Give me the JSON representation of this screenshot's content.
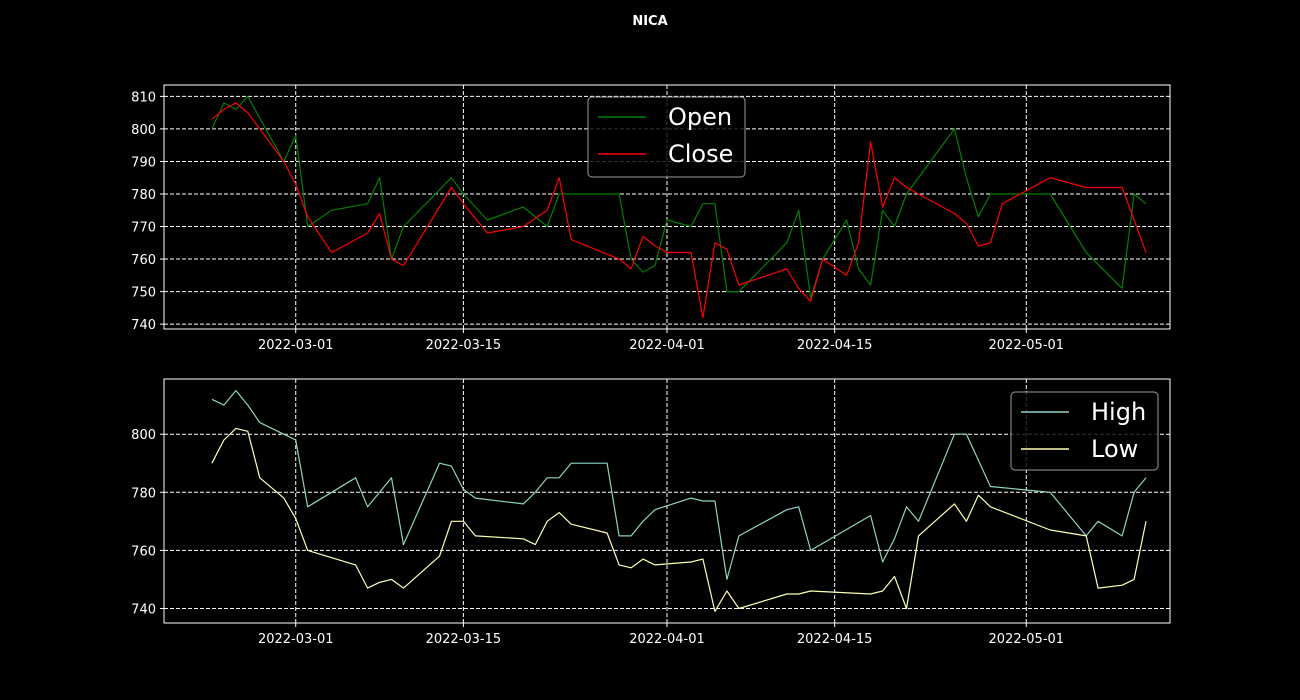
{
  "figure": {
    "title": "NICA"
  },
  "colors": {
    "background": "#000000",
    "axes": "#ffffff",
    "grid": "#ffffff",
    "open": "#008000",
    "close": "#ff0000",
    "high": "#8dd3c7",
    "low": "#ffffb3"
  },
  "chart_data": [
    {
      "type": "line",
      "title": "",
      "xlabel": "",
      "ylabel": "",
      "grid": true,
      "legend": "top-center",
      "xlim": [
        "2022-02-18",
        "2022-05-13"
      ],
      "ylim": [
        738.5,
        813.5
      ],
      "x_ticks": [
        "2022-03-01",
        "2022-03-15",
        "2022-04-01",
        "2022-04-15",
        "2022-05-01"
      ],
      "y_ticks": [
        740,
        750,
        760,
        770,
        780,
        790,
        800,
        810
      ],
      "x": [
        "2022-02-22",
        "2022-02-23",
        "2022-02-24",
        "2022-02-25",
        "2022-02-28",
        "2022-03-01",
        "2022-03-02",
        "2022-03-04",
        "2022-03-07",
        "2022-03-08",
        "2022-03-09",
        "2022-03-10",
        "2022-03-14",
        "2022-03-15",
        "2022-03-17",
        "2022-03-20",
        "2022-03-22",
        "2022-03-23",
        "2022-03-24",
        "2022-03-28",
        "2022-03-29",
        "2022-03-30",
        "2022-03-31",
        "2022-04-01",
        "2022-04-03",
        "2022-04-04",
        "2022-04-05",
        "2022-04-06",
        "2022-04-07",
        "2022-04-11",
        "2022-04-12",
        "2022-04-13",
        "2022-04-14",
        "2022-04-16",
        "2022-04-17",
        "2022-04-18",
        "2022-04-19",
        "2022-04-20",
        "2022-04-21",
        "2022-04-25",
        "2022-04-26",
        "2022-04-27",
        "2022-04-28",
        "2022-04-29",
        "2022-05-03",
        "2022-05-06",
        "2022-05-09",
        "2022-05-10",
        "2022-05-11"
      ],
      "series": [
        {
          "name": "Open",
          "color": "#008000",
          "values": [
            800,
            808,
            806,
            810,
            790,
            798,
            770,
            775,
            777,
            785,
            760,
            770,
            785,
            780,
            772,
            776,
            770,
            780,
            780,
            780,
            760,
            756,
            758,
            772,
            770,
            777,
            777,
            750,
            750,
            765,
            775,
            748,
            760,
            772,
            757,
            752,
            775,
            770,
            780,
            800,
            785,
            773,
            780,
            780,
            780,
            762,
            751,
            780,
            777
          ]
        },
        {
          "name": "Close",
          "color": "#ff0000",
          "values": [
            803,
            806,
            808,
            805,
            790,
            783,
            773,
            762,
            768,
            774,
            760,
            758,
            782,
            777,
            768,
            770,
            775,
            785,
            766,
            760,
            757,
            767,
            764,
            762,
            762,
            742,
            765,
            763,
            752,
            757,
            751,
            747,
            760,
            755,
            765,
            796,
            776,
            785,
            782,
            774,
            771,
            764,
            765,
            777,
            785,
            782,
            782,
            772,
            762
          ]
        }
      ]
    },
    {
      "type": "line",
      "title": "",
      "xlabel": "",
      "ylabel": "",
      "grid": true,
      "legend": "top-right",
      "xlim": [
        "2022-02-18",
        "2022-05-13"
      ],
      "ylim": [
        735,
        819
      ],
      "x_ticks": [
        "2022-03-01",
        "2022-03-15",
        "2022-04-01",
        "2022-04-15",
        "2022-05-01"
      ],
      "y_ticks": [
        740,
        760,
        780,
        800
      ],
      "x": [
        "2022-02-22",
        "2022-02-23",
        "2022-02-24",
        "2022-02-25",
        "2022-02-26",
        "2022-02-28",
        "2022-03-01",
        "2022-03-02",
        "2022-03-06",
        "2022-03-07",
        "2022-03-08",
        "2022-03-09",
        "2022-03-10",
        "2022-03-13",
        "2022-03-14",
        "2022-03-15",
        "2022-03-16",
        "2022-03-20",
        "2022-03-21",
        "2022-03-22",
        "2022-03-23",
        "2022-03-24",
        "2022-03-27",
        "2022-03-28",
        "2022-03-29",
        "2022-03-30",
        "2022-03-31",
        "2022-04-03",
        "2022-04-04",
        "2022-04-05",
        "2022-04-06",
        "2022-04-07",
        "2022-04-11",
        "2022-04-12",
        "2022-04-13",
        "2022-04-18",
        "2022-04-19",
        "2022-04-20",
        "2022-04-21",
        "2022-04-22",
        "2022-04-25",
        "2022-04-26",
        "2022-04-27",
        "2022-04-28",
        "2022-05-03",
        "2022-05-06",
        "2022-05-07",
        "2022-05-09",
        "2022-05-10",
        "2022-05-11"
      ],
      "series": [
        {
          "name": "High",
          "color": "#8dd3c7",
          "values": [
            812,
            810,
            815,
            810,
            804,
            800,
            798,
            775,
            785,
            775,
            780,
            785,
            762,
            790,
            789,
            781,
            778,
            776,
            780,
            785,
            785,
            790,
            790,
            765,
            765,
            770,
            774,
            778,
            777,
            777,
            750,
            765,
            774,
            775,
            760,
            772,
            756,
            764,
            775,
            770,
            800,
            800,
            791,
            782,
            780,
            765,
            770,
            765,
            780,
            785
          ]
        },
        {
          "name": "Low",
          "color": "#ffffb3",
          "values": [
            790,
            798,
            802,
            801,
            785,
            778,
            771,
            760,
            755,
            747,
            749,
            750,
            747,
            758,
            770,
            770,
            765,
            764,
            762,
            770,
            773,
            769,
            766,
            755,
            754,
            757,
            755,
            756,
            757,
            739,
            746,
            740,
            745,
            745,
            746,
            745,
            746,
            751,
            740,
            765,
            776,
            770,
            779,
            775,
            767,
            765,
            747,
            748,
            750,
            770
          ]
        }
      ]
    }
  ],
  "legends": [
    {
      "items": [
        "Open",
        "Close"
      ]
    },
    {
      "items": [
        "High",
        "Low"
      ]
    }
  ]
}
